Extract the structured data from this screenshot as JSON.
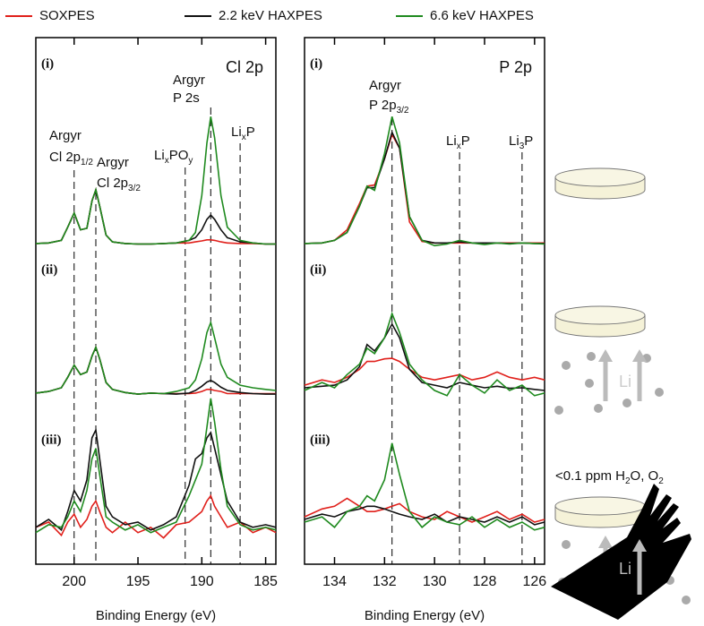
{
  "legend_names": [
    "SOXPES",
    "2.2 keV HAXPES",
    "6.6 keV HAXPES"
  ],
  "chart_data": [
    {
      "type": "line",
      "title": "Cl 2p",
      "x_label": "Binding Energy (eV)",
      "xlim": [
        203,
        184.2
      ],
      "xticks": [
        200,
        195,
        190,
        185
      ],
      "ylim": [
        0,
        100
      ],
      "panel_labels": [
        "(i)",
        "(ii)",
        "(iii)"
      ],
      "x": [
        203,
        202,
        201,
        200.5,
        200,
        199.5,
        199,
        198.6,
        198.3,
        198,
        197.5,
        197,
        196,
        195,
        194,
        193,
        192,
        191,
        190.5,
        190,
        189.6,
        189.3,
        189,
        188.5,
        188,
        187,
        186,
        185,
        184.2
      ],
      "series": [
        {
          "color": "#e0201b",
          "values": [
            [
              60.9,
              61.0,
              61.5,
              64,
              66.7,
              63.5,
              63.8,
              69,
              71.1,
              68,
              62.5,
              61.2,
              60.9,
              60.8,
              60.8,
              60.9,
              61,
              61,
              61.2,
              61.4,
              61.6,
              61.6,
              61.5,
              61.2,
              61,
              60.9,
              60.9,
              60.8,
              60.8
            ],
            [
              32.5,
              32.8,
              33.5,
              35.5,
              37.8,
              36,
              36.5,
              39.5,
              41.2,
              39,
              34.5,
              33.2,
              32.6,
              32.3,
              32.5,
              32.4,
              32.4,
              32.4,
              32.5,
              32.8,
              33.2,
              33.2,
              33,
              32.8,
              32.4,
              32.4,
              32.4,
              32.4,
              32.4
            ],
            [
              7,
              8,
              5.5,
              8,
              9.5,
              7,
              8.5,
              11,
              12,
              10,
              7,
              6,
              8,
              6,
              7,
              5,
              7.5,
              8,
              9,
              10,
              12,
              13,
              11,
              9,
              7,
              8,
              6,
              7,
              6
            ]
          ]
        },
        {
          "color": "#111111",
          "values": [
            [
              60.9,
              61.0,
              61.5,
              64,
              66.7,
              63.5,
              63.8,
              69,
              71.1,
              68,
              62.5,
              61.2,
              60.9,
              60.8,
              60.8,
              60.9,
              61,
              61.5,
              62,
              63.5,
              65.5,
              66.3,
              65.5,
              63.5,
              62,
              61.2,
              61,
              60.8,
              60.8
            ],
            [
              32.5,
              32.8,
              33.5,
              35.5,
              37.8,
              36,
              36.5,
              39.5,
              41.2,
              39,
              34.5,
              33.2,
              32.6,
              32.3,
              32.5,
              32.4,
              32.3,
              32.5,
              33,
              33.8,
              34.6,
              34.9,
              34.5,
              33.6,
              33,
              32.6,
              32.4,
              32.3,
              32.3
            ],
            [
              7,
              8.5,
              6.5,
              10,
              14,
              12,
              16,
              24,
              25.5,
              20,
              11,
              9,
              7.5,
              8,
              6.5,
              7.5,
              9,
              15,
              20,
              21,
              24,
              25,
              22,
              17,
              12,
              8,
              7,
              7.5,
              7
            ]
          ]
        },
        {
          "color": "#1f8a1f",
          "values": [
            [
              60.9,
              61.0,
              61.5,
              64,
              66.7,
              63.5,
              63.8,
              69,
              71.1,
              68,
              62.5,
              61.2,
              60.9,
              60.8,
              60.8,
              60.9,
              61,
              61.5,
              63,
              70,
              80,
              85,
              81,
              70,
              64,
              61.5,
              61,
              60.8,
              60.8
            ],
            [
              32.5,
              32.8,
              33.5,
              35.5,
              37.8,
              36,
              36.5,
              39.5,
              41.2,
              39,
              34.5,
              33.2,
              32.6,
              32.3,
              32.5,
              32.4,
              32.8,
              33.5,
              35,
              39,
              44,
              45.9,
              43,
              38,
              35.5,
              34,
              33.5,
              33.2,
              33
            ],
            [
              6,
              7.5,
              7,
              9,
              12,
              10,
              14,
              20,
              22,
              17,
              9,
              8,
              6.5,
              7.5,
              6,
              7,
              8,
              13,
              16,
              19,
              26,
              31.5,
              27,
              18,
              11,
              7.5,
              6.5,
              7,
              6.5
            ]
          ]
        }
      ],
      "annotations": [
        {
          "x": 200,
          "lines": [
            [
              "Argyr"
            ],
            [
              "Cl 2p",
              "1/2"
            ]
          ]
        },
        {
          "x": 198.3,
          "lines": [
            [
              "Argyr"
            ],
            [
              "Cl 2p",
              "3/2"
            ]
          ]
        },
        {
          "x": 191.3,
          "lines": [
            [
              "Li",
              "x",
              "PO",
              "y"
            ]
          ]
        },
        {
          "x": 189.3,
          "lines": [
            [
              "Argyr"
            ],
            [
              "P 2s"
            ]
          ]
        },
        {
          "x": 187,
          "lines": [
            [
              "Li",
              "x",
              "P"
            ]
          ]
        }
      ]
    },
    {
      "type": "line",
      "title": "P 2p",
      "x_label": "Binding Energy (eV)",
      "xlim": [
        135.2,
        125.6
      ],
      "xticks": [
        134,
        132,
        130,
        128,
        126
      ],
      "ylim": [
        0,
        100
      ],
      "panel_labels": [
        "(i)",
        "(ii)",
        "(iii)"
      ],
      "x": [
        135.2,
        134.5,
        134,
        133.5,
        133,
        132.7,
        132.4,
        132,
        131.7,
        131.4,
        131,
        130.5,
        130,
        129.5,
        129,
        128.5,
        128,
        127.5,
        127,
        126.5,
        126,
        125.6
      ],
      "series": [
        {
          "color": "#e0201b",
          "values": [
            [
              60.9,
              61,
              61.5,
              63.5,
              68.5,
              71.8,
              72,
              77,
              81.6,
              79,
              65,
              61.3,
              61,
              61,
              61,
              61,
              61,
              61,
              61,
              61,
              61,
              61
            ],
            [
              34,
              35,
              34.5,
              35.5,
              37,
              38.5,
              38.5,
              39,
              39.1,
              38.5,
              37,
              35.5,
              35,
              35.5,
              36,
              35,
              35.5,
              36.5,
              35.5,
              35,
              35.5,
              35
            ],
            [
              9,
              10.5,
              11,
              12.5,
              11,
              10,
              10,
              10.5,
              11,
              11.5,
              10,
              9,
              8.5,
              10,
              9,
              8,
              9,
              10,
              8.5,
              9.5,
              8,
              8.5
            ]
          ]
        },
        {
          "color": "#111111",
          "values": [
            [
              60.9,
              61,
              61.5,
              63,
              68,
              71.5,
              71.5,
              77,
              82,
              79,
              66,
              61.5,
              61,
              61,
              61.2,
              61,
              61,
              61,
              60.9,
              61,
              60.9,
              60.9
            ],
            [
              33.5,
              33.8,
              34,
              35,
              37.5,
              41.7,
              40.5,
              43,
              45.6,
              43,
              37,
              34.5,
              34,
              33.5,
              34.5,
              34,
              33.5,
              33.8,
              33.4,
              33.5,
              33.2,
              33
            ],
            [
              8.5,
              9.5,
              9,
              10,
              10.5,
              11,
              11,
              10.5,
              10,
              9.5,
              9,
              8.5,
              9.5,
              8,
              9,
              8.5,
              8,
              9,
              8,
              9,
              7.5,
              8
            ]
          ]
        },
        {
          "color": "#1f8a1f",
          "values": [
            [
              60.9,
              61,
              61.5,
              63,
              68,
              71.8,
              71,
              78,
              85,
              80,
              66,
              61.5,
              60.5,
              60.8,
              61.5,
              61,
              60.7,
              61,
              60.8,
              61,
              60.9,
              60.8
            ],
            [
              33,
              34.5,
              33.5,
              36,
              38,
              41,
              40,
              43,
              47.6,
              44,
              38,
              35,
              33,
              32,
              36,
              34,
              32.5,
              35,
              33,
              34,
              32,
              32.5
            ],
            [
              8,
              9,
              7,
              10,
              11,
              13,
              12,
              16,
              23,
              17,
              10,
              7,
              9,
              8,
              7.5,
              9,
              7,
              8.5,
              7,
              8,
              6.5,
              7
            ]
          ]
        }
      ],
      "annotations": [
        {
          "x": 131.7,
          "lines": [
            [
              "Argyr"
            ],
            [
              "P 2p",
              "3/2"
            ]
          ]
        },
        {
          "x": 129,
          "lines": [
            [
              "Li",
              "x",
              "P"
            ]
          ]
        },
        {
          "x": 126.5,
          "lines": [
            [
              "Li",
              "3",
              "P"
            ]
          ]
        }
      ]
    }
  ],
  "illustration": {
    "li_labels": [
      "Li",
      "Li"
    ],
    "condition": [
      "<0.1 ppm H",
      "2",
      "O, O",
      "2"
    ]
  }
}
